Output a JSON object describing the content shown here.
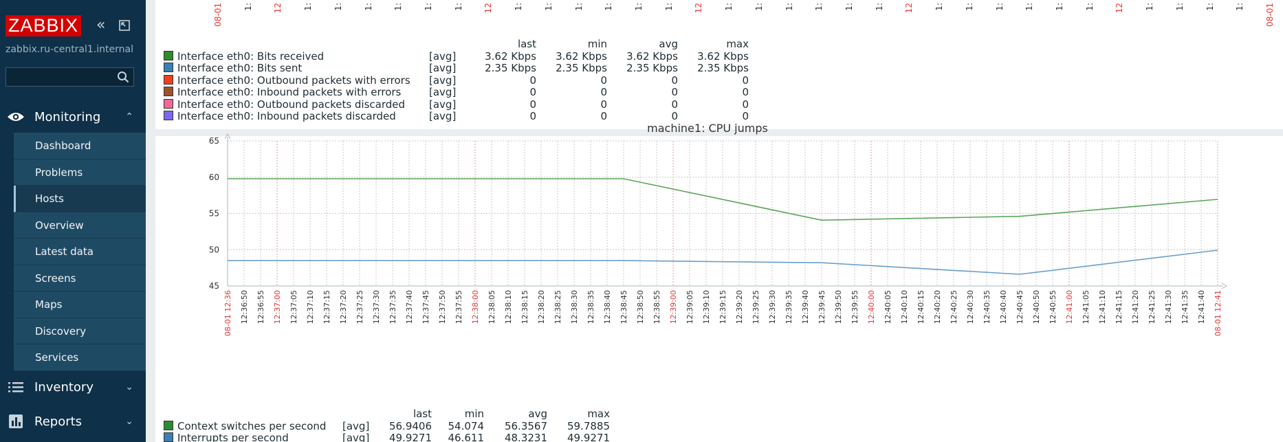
{
  "sidebar": {
    "logo": "ZABBIX",
    "server_name": "zabbix.ru-central1.internal",
    "search_placeholder": "",
    "collapse_icon": "double-chevron-left-icon",
    "kiosk_icon": "fullscreen-icon",
    "sections": [
      {
        "label": "Monitoring",
        "icon": "eye-icon",
        "expanded": true
      },
      {
        "label": "Inventory",
        "icon": "list-icon",
        "expanded": false
      },
      {
        "label": "Reports",
        "icon": "bar-chart-icon",
        "expanded": false
      }
    ],
    "monitoring_items": [
      "Dashboard",
      "Problems",
      "Hosts",
      "Overview",
      "Latest data",
      "Screens",
      "Maps",
      "Discovery",
      "Services"
    ],
    "selected_item": "Hosts"
  },
  "top_graph": {
    "time_ticks": [
      {
        "label": "08-01",
        "red": true
      },
      {
        "label": "1:",
        "red": false
      },
      {
        "label": "12",
        "red": true
      },
      {
        "label": "1:",
        "red": false
      },
      {
        "label": "1:",
        "red": false
      },
      {
        "label": "1:",
        "red": false
      },
      {
        "label": "1:",
        "red": false
      },
      {
        "label": "1:",
        "red": false
      },
      {
        "label": "1:",
        "red": false
      },
      {
        "label": "12",
        "red": true
      },
      {
        "label": "1:",
        "red": false
      },
      {
        "label": "1:",
        "red": false
      },
      {
        "label": "1:",
        "red": false
      },
      {
        "label": "1:",
        "red": false
      },
      {
        "label": "1:",
        "red": false
      },
      {
        "label": "1:",
        "red": false
      },
      {
        "label": "12",
        "red": true
      },
      {
        "label": "1:",
        "red": false
      },
      {
        "label": "1:",
        "red": false
      },
      {
        "label": "1:",
        "red": false
      },
      {
        "label": "1:",
        "red": false
      },
      {
        "label": "1:",
        "red": false
      },
      {
        "label": "1:",
        "red": false
      },
      {
        "label": "12",
        "red": true
      },
      {
        "label": "1:",
        "red": false
      },
      {
        "label": "1:",
        "red": false
      },
      {
        "label": "1:",
        "red": false
      },
      {
        "label": "1:",
        "red": false
      },
      {
        "label": "1:",
        "red": false
      },
      {
        "label": "1:",
        "red": false
      },
      {
        "label": "12",
        "red": true
      },
      {
        "label": "1:",
        "red": false
      },
      {
        "label": "1:",
        "red": false
      },
      {
        "label": "1:",
        "red": false
      },
      {
        "label": "1:",
        "red": false
      },
      {
        "label": "08-01",
        "red": true
      }
    ],
    "legend_headers": [
      "last",
      "min",
      "avg",
      "max"
    ],
    "legend_rows": [
      {
        "color": "#2e8b2e",
        "name": "Interface eth0: Bits received",
        "func": "[avg]",
        "last": "3.62 Kbps",
        "min": "3.62 Kbps",
        "avg": "3.62 Kbps",
        "max": "3.62 Kbps"
      },
      {
        "color": "#3a7fb5",
        "name": "Interface eth0: Bits sent",
        "func": "[avg]",
        "last": "2.35 Kbps",
        "min": "2.35 Kbps",
        "avg": "2.35 Kbps",
        "max": "2.35 Kbps"
      },
      {
        "color": "#f0401d",
        "name": "Interface eth0: Outbound packets with errors",
        "func": "[avg]",
        "last": "0",
        "min": "0",
        "avg": "0",
        "max": "0"
      },
      {
        "color": "#a0522d",
        "name": "Interface eth0: Inbound packets with errors",
        "func": "[avg]",
        "last": "0",
        "min": "0",
        "avg": "0",
        "max": "0"
      },
      {
        "color": "#f06a9a",
        "name": "Interface eth0: Outbound packets discarded",
        "func": "[avg]",
        "last": "0",
        "min": "0",
        "avg": "0",
        "max": "0"
      },
      {
        "color": "#7b68ee",
        "name": "Interface eth0: Inbound packets discarded",
        "func": "[avg]",
        "last": "0",
        "min": "0",
        "avg": "0",
        "max": "0"
      }
    ]
  },
  "chart_data": {
    "type": "line",
    "title": "machine1: CPU jumps",
    "ylim": [
      45,
      65
    ],
    "y_ticks": [
      45,
      50,
      55,
      60,
      65
    ],
    "grid": true,
    "x_ticks": [
      {
        "label": "08-01 12:36",
        "red": true
      },
      {
        "label": "12:36:50",
        "red": false
      },
      {
        "label": "12:36:55",
        "red": false
      },
      {
        "label": "12:37:00",
        "red": true
      },
      {
        "label": "12:37:05",
        "red": false
      },
      {
        "label": "12:37:10",
        "red": false
      },
      {
        "label": "12:37:15",
        "red": false
      },
      {
        "label": "12:37:20",
        "red": false
      },
      {
        "label": "12:37:25",
        "red": false
      },
      {
        "label": "12:37:30",
        "red": false
      },
      {
        "label": "12:37:35",
        "red": false
      },
      {
        "label": "12:37:40",
        "red": false
      },
      {
        "label": "12:37:45",
        "red": false
      },
      {
        "label": "12:37:50",
        "red": false
      },
      {
        "label": "12:37:55",
        "red": false
      },
      {
        "label": "12:38:00",
        "red": true
      },
      {
        "label": "12:38:05",
        "red": false
      },
      {
        "label": "12:38:10",
        "red": false
      },
      {
        "label": "12:38:15",
        "red": false
      },
      {
        "label": "12:38:20",
        "red": false
      },
      {
        "label": "12:38:25",
        "red": false
      },
      {
        "label": "12:38:30",
        "red": false
      },
      {
        "label": "12:38:35",
        "red": false
      },
      {
        "label": "12:38:40",
        "red": false
      },
      {
        "label": "12:38:45",
        "red": false
      },
      {
        "label": "12:38:50",
        "red": false
      },
      {
        "label": "12:38:55",
        "red": false
      },
      {
        "label": "12:39:00",
        "red": true
      },
      {
        "label": "12:39:05",
        "red": false
      },
      {
        "label": "12:39:10",
        "red": false
      },
      {
        "label": "12:39:15",
        "red": false
      },
      {
        "label": "12:39:20",
        "red": false
      },
      {
        "label": "12:39:25",
        "red": false
      },
      {
        "label": "12:39:30",
        "red": false
      },
      {
        "label": "12:39:35",
        "red": false
      },
      {
        "label": "12:39:40",
        "red": false
      },
      {
        "label": "12:39:45",
        "red": false
      },
      {
        "label": "12:39:50",
        "red": false
      },
      {
        "label": "12:39:55",
        "red": false
      },
      {
        "label": "12:40:00",
        "red": true
      },
      {
        "label": "12:40:05",
        "red": false
      },
      {
        "label": "12:40:10",
        "red": false
      },
      {
        "label": "12:40:15",
        "red": false
      },
      {
        "label": "12:40:20",
        "red": false
      },
      {
        "label": "12:40:25",
        "red": false
      },
      {
        "label": "12:40:30",
        "red": false
      },
      {
        "label": "12:40:35",
        "red": false
      },
      {
        "label": "12:40:40",
        "red": false
      },
      {
        "label": "12:40:45",
        "red": false
      },
      {
        "label": "12:40:50",
        "red": false
      },
      {
        "label": "12:40:55",
        "red": false
      },
      {
        "label": "12:41:00",
        "red": true
      },
      {
        "label": "12:41:05",
        "red": false
      },
      {
        "label": "12:41:10",
        "red": false
      },
      {
        "label": "12:41:15",
        "red": false
      },
      {
        "label": "12:41:20",
        "red": false
      },
      {
        "label": "12:41:25",
        "red": false
      },
      {
        "label": "12:41:30",
        "red": false
      },
      {
        "label": "12:41:35",
        "red": false
      },
      {
        "label": "12:41:40",
        "red": false
      },
      {
        "label": "08-01 12:41",
        "red": true
      }
    ],
    "x_start": "12:36:45",
    "x_end": "12:41:45",
    "series": [
      {
        "name": "Context switches per second",
        "color": "#5aa55a",
        "points": [
          [
            "12:36:45",
            59.79
          ],
          [
            "12:37:45",
            59.79
          ],
          [
            "12:38:45",
            59.79
          ],
          [
            "12:39:45",
            54.07
          ],
          [
            "12:40:45",
            54.6
          ],
          [
            "12:41:45",
            56.94
          ],
          [
            "12:41:45",
            56.94
          ]
        ]
      },
      {
        "name": "Interrupts per second",
        "color": "#6b9ec9",
        "points": [
          [
            "12:36:45",
            48.5
          ],
          [
            "12:38:45",
            48.5
          ],
          [
            "12:39:45",
            48.2
          ],
          [
            "12:40:45",
            46.61
          ],
          [
            "12:41:45",
            49.93
          ]
        ]
      }
    ],
    "legend_headers": [
      "last",
      "min",
      "avg",
      "max"
    ],
    "legend_rows": [
      {
        "color": "#2e8b2e",
        "name": "Context switches per second",
        "func": "[avg]",
        "last": "56.9406",
        "min": "54.074",
        "avg": "56.3567",
        "max": "59.7885"
      },
      {
        "color": "#3a7fb5",
        "name": "Interrupts per second",
        "func": "[avg]",
        "last": "49.9271",
        "min": "46.611",
        "avg": "48.3231",
        "max": "49.9271"
      }
    ]
  }
}
